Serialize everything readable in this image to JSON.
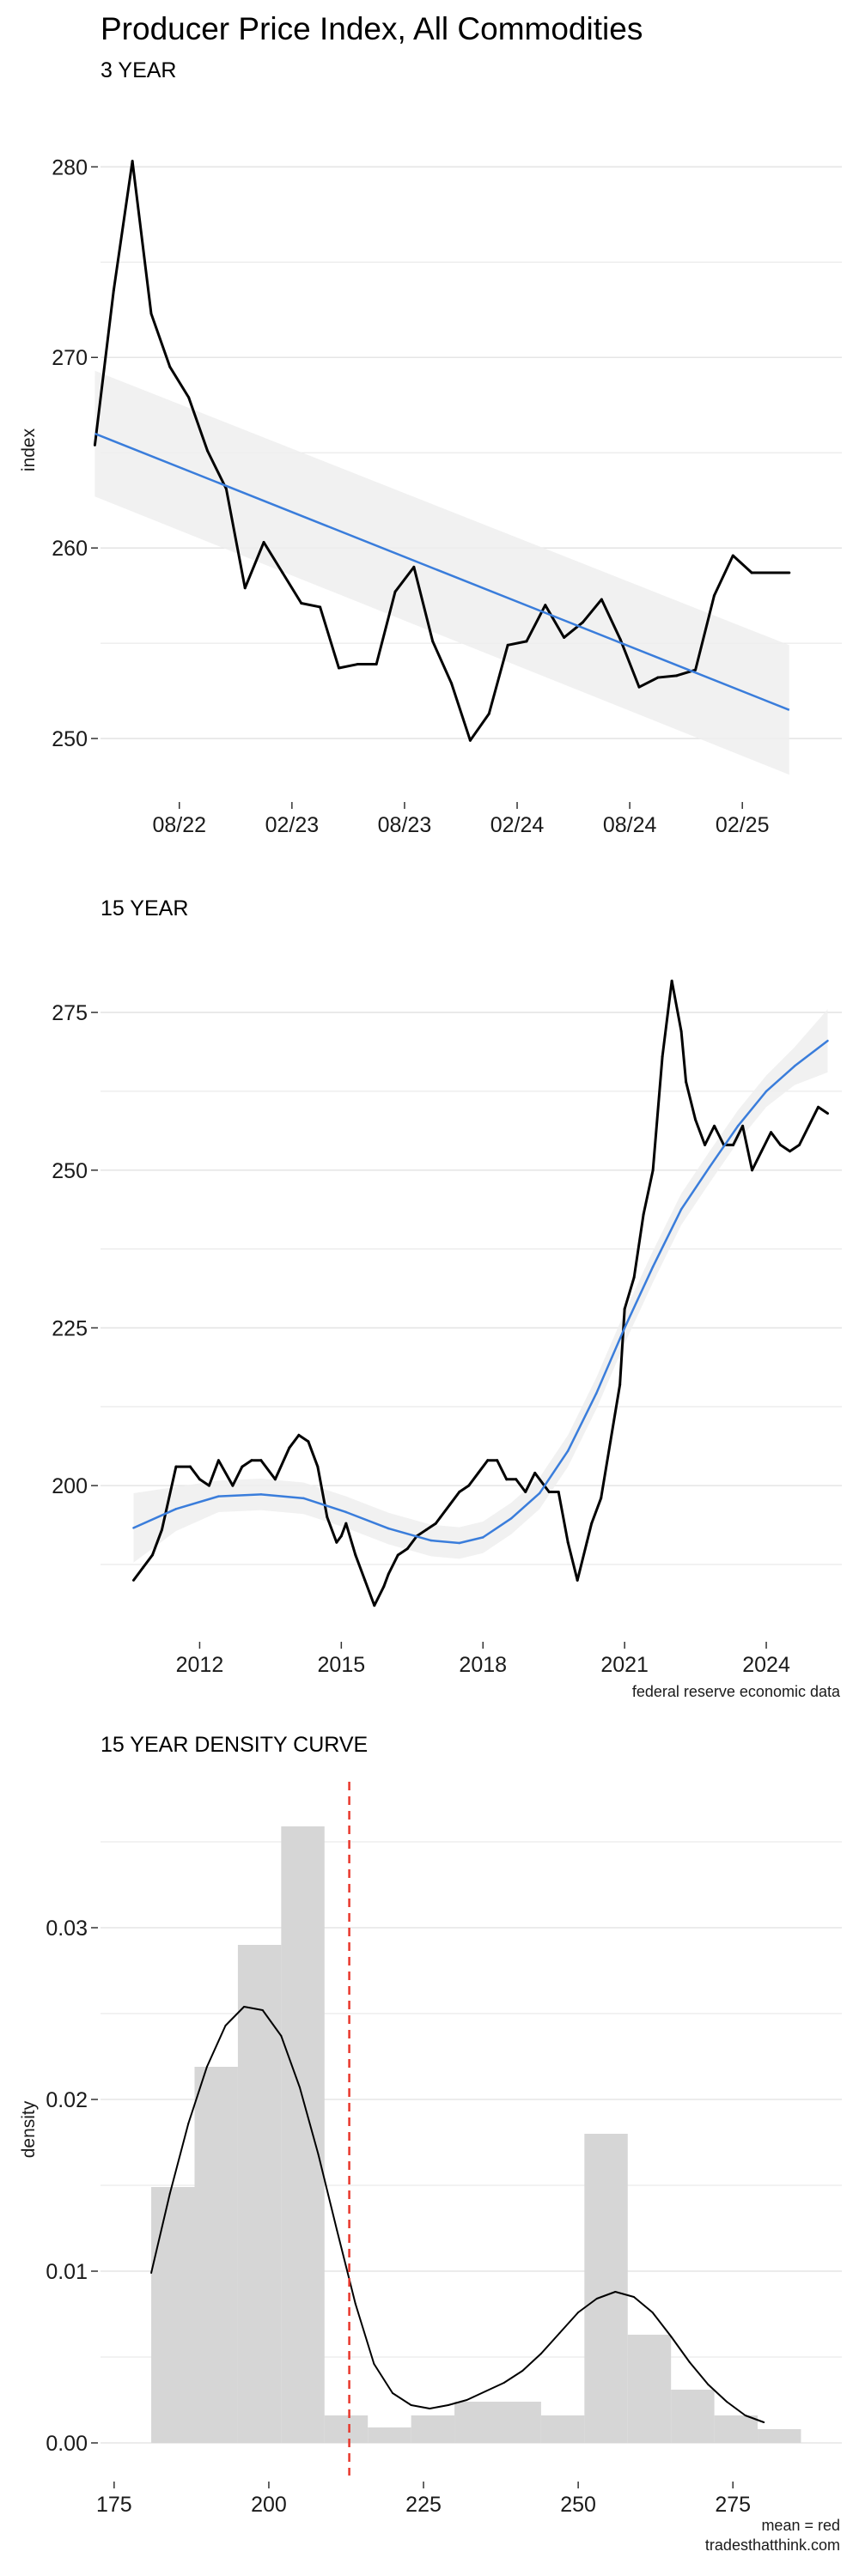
{
  "figure": {
    "title": "Producer Price Index, All Commodities",
    "caption_top": "federal reserve economic data",
    "caption_bottom_1": "mean = red",
    "caption_bottom_2": "tradesthatthink.com"
  },
  "colors": {
    "series_line": "#000000",
    "trend_line": "#3a7ddb",
    "confidence_band": "#eeeeee",
    "grid": "#e5e5e5",
    "histogram_bar": "#d6d6d6",
    "mean_line": "#e8372c"
  },
  "chart_data": [
    {
      "id": "three_year",
      "type": "line",
      "subtitle": "3 YEAR",
      "ylabel": "index",
      "xlabel": "",
      "grid": true,
      "ylim": [
        247.3,
        283.8
      ],
      "xlim": [
        0.3,
        39.8
      ],
      "y_ticks": [
        250,
        260,
        270,
        280
      ],
      "x_ticks": [
        {
          "x": 4.5,
          "label": "08/22"
        },
        {
          "x": 10.5,
          "label": "02/23"
        },
        {
          "x": 16.5,
          "label": "08/23"
        },
        {
          "x": 22.5,
          "label": "02/24"
        },
        {
          "x": 28.5,
          "label": "08/24"
        },
        {
          "x": 34.5,
          "label": "02/25"
        }
      ],
      "series": [
        {
          "name": "",
          "x": [
            0,
            1,
            2,
            3,
            4,
            5,
            6,
            7,
            8,
            9,
            10,
            11,
            12,
            13,
            14,
            15,
            16,
            17,
            18,
            19,
            20,
            21,
            22,
            23,
            24,
            25,
            26,
            27,
            28,
            29,
            30,
            31,
            32,
            33,
            34,
            35,
            36,
            37
          ],
          "y": [
            265.4,
            273.5,
            280.3,
            272.3,
            269.5,
            267.9,
            265.1,
            263.1,
            257.9,
            260.3,
            258.7,
            257.1,
            256.9,
            253.7,
            253.9,
            253.9,
            257.7,
            259.0,
            255.1,
            252.9,
            249.9,
            251.3,
            254.9,
            255.1,
            257.0,
            255.3,
            256.1,
            257.3,
            255.2,
            252.7,
            253.2,
            253.3,
            253.6,
            257.5,
            259.6,
            258.7,
            258.7,
            258.7
          ]
        }
      ],
      "trend": {
        "x": [
          0,
          37
        ],
        "y": [
          266.0,
          251.5
        ],
        "band_start": [
          262.7,
          269.3
        ],
        "band_end": [
          248.1,
          254.9
        ]
      }
    },
    {
      "id": "fifteen_year",
      "type": "line",
      "subtitle": "15 YEAR",
      "ylabel": "",
      "xlabel": "",
      "grid": true,
      "ylim": [
        176.2,
        284.4
      ],
      "xlim": [
        2009.9,
        2025.6
      ],
      "y_ticks": [
        200,
        225,
        250,
        275
      ],
      "x_ticks": [
        {
          "x": 2012,
          "label": "2012"
        },
        {
          "x": 2015,
          "label": "2015"
        },
        {
          "x": 2018,
          "label": "2018"
        },
        {
          "x": 2021,
          "label": "2021"
        },
        {
          "x": 2024,
          "label": "2024"
        }
      ],
      "series": [
        {
          "name": "",
          "x": [
            2010.6,
            2010.8,
            2011.0,
            2011.2,
            2011.5,
            2011.8,
            2012.0,
            2012.2,
            2012.4,
            2012.7,
            2012.9,
            2013.1,
            2013.3,
            2013.6,
            2013.9,
            2014.1,
            2014.3,
            2014.5,
            2014.7,
            2014.9,
            2015.0,
            2015.1,
            2015.3,
            2015.5,
            2015.7,
            2015.9,
            2016.0,
            2016.2,
            2016.4,
            2016.6,
            2016.8,
            2017.0,
            2017.1,
            2017.3,
            2017.5,
            2017.7,
            2017.9,
            2018.1,
            2018.3,
            2018.5,
            2018.7,
            2018.9,
            2019.1,
            2019.4,
            2019.6,
            2019.8,
            2020.0,
            2020.2,
            2020.3,
            2020.5,
            2020.7,
            2020.9,
            2021.0,
            2021.2,
            2021.4,
            2021.6,
            2021.8,
            2022.0,
            2022.2,
            2022.3,
            2022.5,
            2022.7,
            2022.9,
            2023.1,
            2023.3,
            2023.5,
            2023.7,
            2023.9,
            2024.1,
            2024.3,
            2024.5,
            2024.7,
            2024.9,
            2025.1,
            2025.3
          ],
          "y": [
            185,
            187,
            189,
            193,
            203,
            203,
            201,
            200,
            204,
            200,
            203,
            204,
            204,
            201,
            206,
            208,
            207,
            203,
            195,
            191,
            192,
            194,
            189,
            185,
            181,
            184,
            186,
            189,
            190,
            192,
            193,
            194,
            195,
            197,
            199,
            200,
            202,
            204,
            204,
            201,
            201,
            199,
            202,
            199,
            199,
            191,
            185,
            191,
            194,
            198,
            207,
            216,
            228,
            233,
            243,
            250,
            268,
            280,
            272,
            264,
            258,
            254,
            257,
            254,
            254,
            257,
            250,
            253,
            256,
            254,
            253,
            254,
            257,
            260,
            259
          ]
        }
      ],
      "trend": {
        "x": [
          2010.6,
          2011.5,
          2012.4,
          2013.3,
          2014.2,
          2015.1,
          2016.0,
          2016.9,
          2017.5,
          2018.0,
          2018.6,
          2019.2,
          2019.8,
          2020.4,
          2021.0,
          2021.6,
          2022.2,
          2022.8,
          2023.4,
          2024.0,
          2024.6,
          2025.3
        ],
        "y": [
          193.3,
          196.3,
          198.3,
          198.6,
          198.0,
          195.8,
          193.2,
          191.3,
          190.9,
          191.8,
          194.8,
          198.8,
          205.5,
          214.6,
          225.0,
          234.7,
          243.8,
          250.5,
          257.0,
          262.5,
          266.5,
          270.5
        ],
        "band_half_width": [
          5.5,
          3.5,
          2.5,
          2.5,
          2.5,
          2.5,
          2.5,
          2.5,
          2.5,
          2.5,
          2.5,
          2.5,
          2.5,
          2.5,
          2.5,
          2.5,
          2.5,
          2.5,
          2.5,
          2.5,
          3.0,
          5.0
        ]
      }
    },
    {
      "id": "density",
      "type": "bar",
      "subtitle": "15 YEAR DENSITY CURVE",
      "ylabel": "density",
      "xlabel": "",
      "grid": true,
      "ylim": [
        -0.0019,
        0.0385
      ],
      "xlim": [
        172.8,
        292.6
      ],
      "y_ticks": [
        0.0,
        0.01,
        0.02,
        0.03
      ],
      "y_tick_labels": [
        "0.00",
        "0.01",
        "0.02",
        "0.03"
      ],
      "x_ticks": [
        175,
        200,
        225,
        250,
        275
      ],
      "histogram": {
        "bin_edges": [
          181,
          188,
          195,
          202,
          209,
          216,
          223,
          230,
          237,
          244,
          251,
          258,
          265,
          272,
          279,
          286
        ],
        "values": [
          0.0149,
          0.0219,
          0.029,
          0.0359,
          0.0016,
          0.0009,
          0.0016,
          0.0024,
          0.0024,
          0.0016,
          0.018,
          0.0063,
          0.0031,
          0.0016,
          0.0008
        ]
      },
      "density_curve": {
        "x": [
          181,
          184,
          187,
          190,
          193,
          196,
          199,
          202,
          205,
          208,
          211,
          214,
          217,
          220,
          223,
          226,
          229,
          232,
          235,
          238,
          241,
          244,
          247,
          250,
          253,
          256,
          259,
          262,
          265,
          268,
          271,
          274,
          277,
          280
        ],
        "y": [
          0.0099,
          0.0145,
          0.0186,
          0.0219,
          0.0243,
          0.0254,
          0.0252,
          0.0237,
          0.0207,
          0.0168,
          0.0124,
          0.0081,
          0.0046,
          0.0029,
          0.0022,
          0.002,
          0.0022,
          0.0025,
          0.003,
          0.0035,
          0.0042,
          0.0052,
          0.0064,
          0.0076,
          0.0084,
          0.0088,
          0.0085,
          0.0076,
          0.0062,
          0.0047,
          0.0034,
          0.0024,
          0.0016,
          0.0012
        ]
      },
      "mean": 213
    }
  ]
}
